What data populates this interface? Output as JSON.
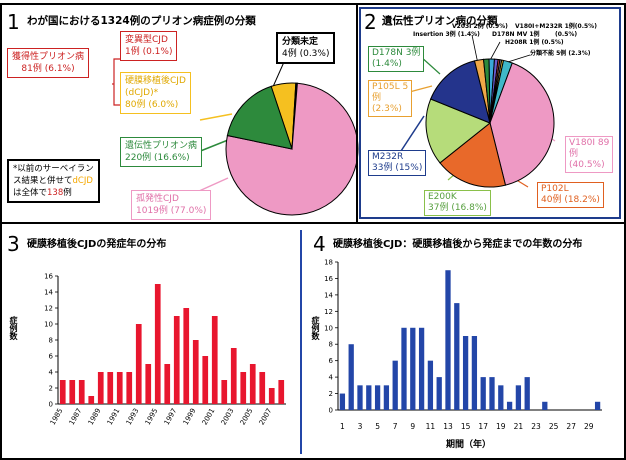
{
  "colors": {
    "sporadic": "#ee99c4",
    "genetic": "#2d8a3c",
    "acquired": "#f5c020",
    "unknown": "#222222",
    "red_text": "#cc2222",
    "bar_red": "#e8162e",
    "bar_blue": "#2346a8",
    "blue_frame": "#1e3c8c"
  },
  "panel1": {
    "num": "1",
    "title": "わが国における1324例のプリオン病症例の分類",
    "note_line1": "*以前のサーベイラン",
    "note_line2": "ス結果と併せて",
    "note_dcjd": "dCJD",
    "note_line3a": "は全体で",
    "note_count": "138",
    "note_line3b": "例",
    "acquired_box": {
      "name": "獲得性プリオン病",
      "value": "81例 (6.1%)"
    },
    "variant_box": {
      "name": "変異型CJD",
      "value": "1例 (0.1%)"
    },
    "dcjd_box": {
      "name": "硬膜移植後CJD",
      "abbr": "(dCJD)*",
      "value": "80例 (6.0%)"
    },
    "unknown_box": {
      "name": "分類未定",
      "value": "4例 (0.3%)"
    },
    "genetic_box": {
      "name": "遺伝性プリオン病",
      "value": "220例 (16.6%)"
    },
    "sporadic_box": {
      "name": "孤発性CJD",
      "value": "1019例 (77.0%)"
    }
  },
  "panel2": {
    "num": "2",
    "title": "遺伝性プリオン病の分類",
    "labels": {
      "d178n3_name": "D178N 3例",
      "d178n3_pct": "(1.4%)",
      "p105l_name": "P105L 5",
      "p105l_unit": "例",
      "p105l_pct": "(2.3%)",
      "m232r_name": "M232R",
      "m232r_value": "33例 (15%)",
      "e200k_name": "E200K",
      "e200k_value": "37例 (16.8%)",
      "p102l_name": "P102L",
      "p102l_value": "40例 (18.2%)",
      "v180i_name": "V180I 89",
      "v180i_value": "例",
      "v180i_pct": "(40.5%)",
      "small1": "V203I 2例 (0.9%)",
      "small2": "V180I+M232R 1例(0.5%)",
      "small3": "Insertion 3例 (1.4%)",
      "small4": "D178N MV 1例",
      "small4b": "(0.5%)",
      "small5": "H208R 1例 (0.5%)",
      "small6": "分類不能 5例 (2.3%)"
    }
  },
  "panel3": {
    "num": "3",
    "title": "硬膜移植後CJDの発症年の分布",
    "ylabel": "症例数"
  },
  "panel4": {
    "num": "4",
    "title": "硬膜移植後CJD：硬膜移植後から発症までの年数の分布",
    "ylabel": "症例数",
    "xlabel": "期間（年）"
  },
  "chart_data": [
    {
      "type": "pie",
      "title": "わが国における1324例のプリオン病症例の分類",
      "slices": [
        {
          "label": "孤発性CJD",
          "value": 1019,
          "pct": 77.0
        },
        {
          "label": "遺伝性プリオン病",
          "value": 220,
          "pct": 16.6
        },
        {
          "label": "硬膜移植後CJD (dCJD)",
          "value": 80,
          "pct": 6.0
        },
        {
          "label": "変異型CJD",
          "value": 1,
          "pct": 0.1
        },
        {
          "label": "分類未定",
          "value": 4,
          "pct": 0.3
        }
      ]
    },
    {
      "type": "pie",
      "title": "遺伝性プリオン病の分類",
      "slices": [
        {
          "label": "V180I",
          "value": 89,
          "pct": 40.5
        },
        {
          "label": "P102L",
          "value": 40,
          "pct": 18.2
        },
        {
          "label": "E200K",
          "value": 37,
          "pct": 16.8
        },
        {
          "label": "M232R",
          "value": 33,
          "pct": 15
        },
        {
          "label": "P105L",
          "value": 5,
          "pct": 2.3
        },
        {
          "label": "D178N",
          "value": 3,
          "pct": 1.4
        },
        {
          "label": "Insertion",
          "value": 3,
          "pct": 1.4
        },
        {
          "label": "V203I",
          "value": 2,
          "pct": 0.9
        },
        {
          "label": "V180I+M232R",
          "value": 1,
          "pct": 0.5
        },
        {
          "label": "D178N MV",
          "value": 1,
          "pct": 0.5
        },
        {
          "label": "H208R",
          "value": 1,
          "pct": 0.5
        },
        {
          "label": "分類不能",
          "value": 5,
          "pct": 2.3
        }
      ]
    },
    {
      "type": "bar",
      "title": "硬膜移植後CJDの発症年の分布",
      "xlabel": "",
      "ylabel": "症例数",
      "categories": [
        1985,
        1986,
        1987,
        1988,
        1989,
        1990,
        1991,
        1992,
        1993,
        1994,
        1995,
        1996,
        1997,
        1998,
        1999,
        2000,
        2001,
        2002,
        2003,
        2004,
        2005,
        2006,
        2007,
        2008
      ],
      "tick_labels": [
        "1985",
        "1987",
        "1989",
        "1991",
        "1993",
        "1995",
        "1997",
        "1999",
        "2001",
        "2003",
        "2005",
        "2007"
      ],
      "values": [
        3,
        3,
        3,
        1,
        4,
        4,
        4,
        4,
        10,
        5,
        15,
        5,
        11,
        12,
        8,
        6,
        11,
        3,
        7,
        4,
        5,
        4,
        2,
        3
      ],
      "yticks": [
        0,
        2,
        4,
        6,
        8,
        10,
        12,
        14,
        16
      ],
      "ylim": [
        0,
        16
      ]
    },
    {
      "type": "bar",
      "title": "硬膜移植後CJD：硬膜移植後から発症までの年数の分布",
      "xlabel": "期間（年）",
      "ylabel": "症例数",
      "categories": [
        1,
        2,
        3,
        4,
        5,
        6,
        7,
        8,
        9,
        10,
        11,
        12,
        13,
        14,
        15,
        16,
        17,
        18,
        19,
        20,
        21,
        22,
        23,
        24,
        25,
        26,
        27,
        28,
        29,
        30
      ],
      "tick_labels": [
        "1",
        "3",
        "5",
        "7",
        "9",
        "11",
        "13",
        "15",
        "17",
        "19",
        "21",
        "23",
        "25",
        "27",
        "29"
      ],
      "values": [
        2,
        8,
        3,
        3,
        3,
        3,
        6,
        10,
        10,
        10,
        6,
        4,
        17,
        13,
        9,
        9,
        4,
        4,
        3,
        1,
        3,
        4,
        0,
        1,
        0,
        0,
        0,
        0,
        0,
        1
      ],
      "yticks": [
        0,
        2,
        4,
        6,
        8,
        10,
        12,
        14,
        16,
        18
      ],
      "ylim": [
        0,
        18
      ]
    }
  ]
}
